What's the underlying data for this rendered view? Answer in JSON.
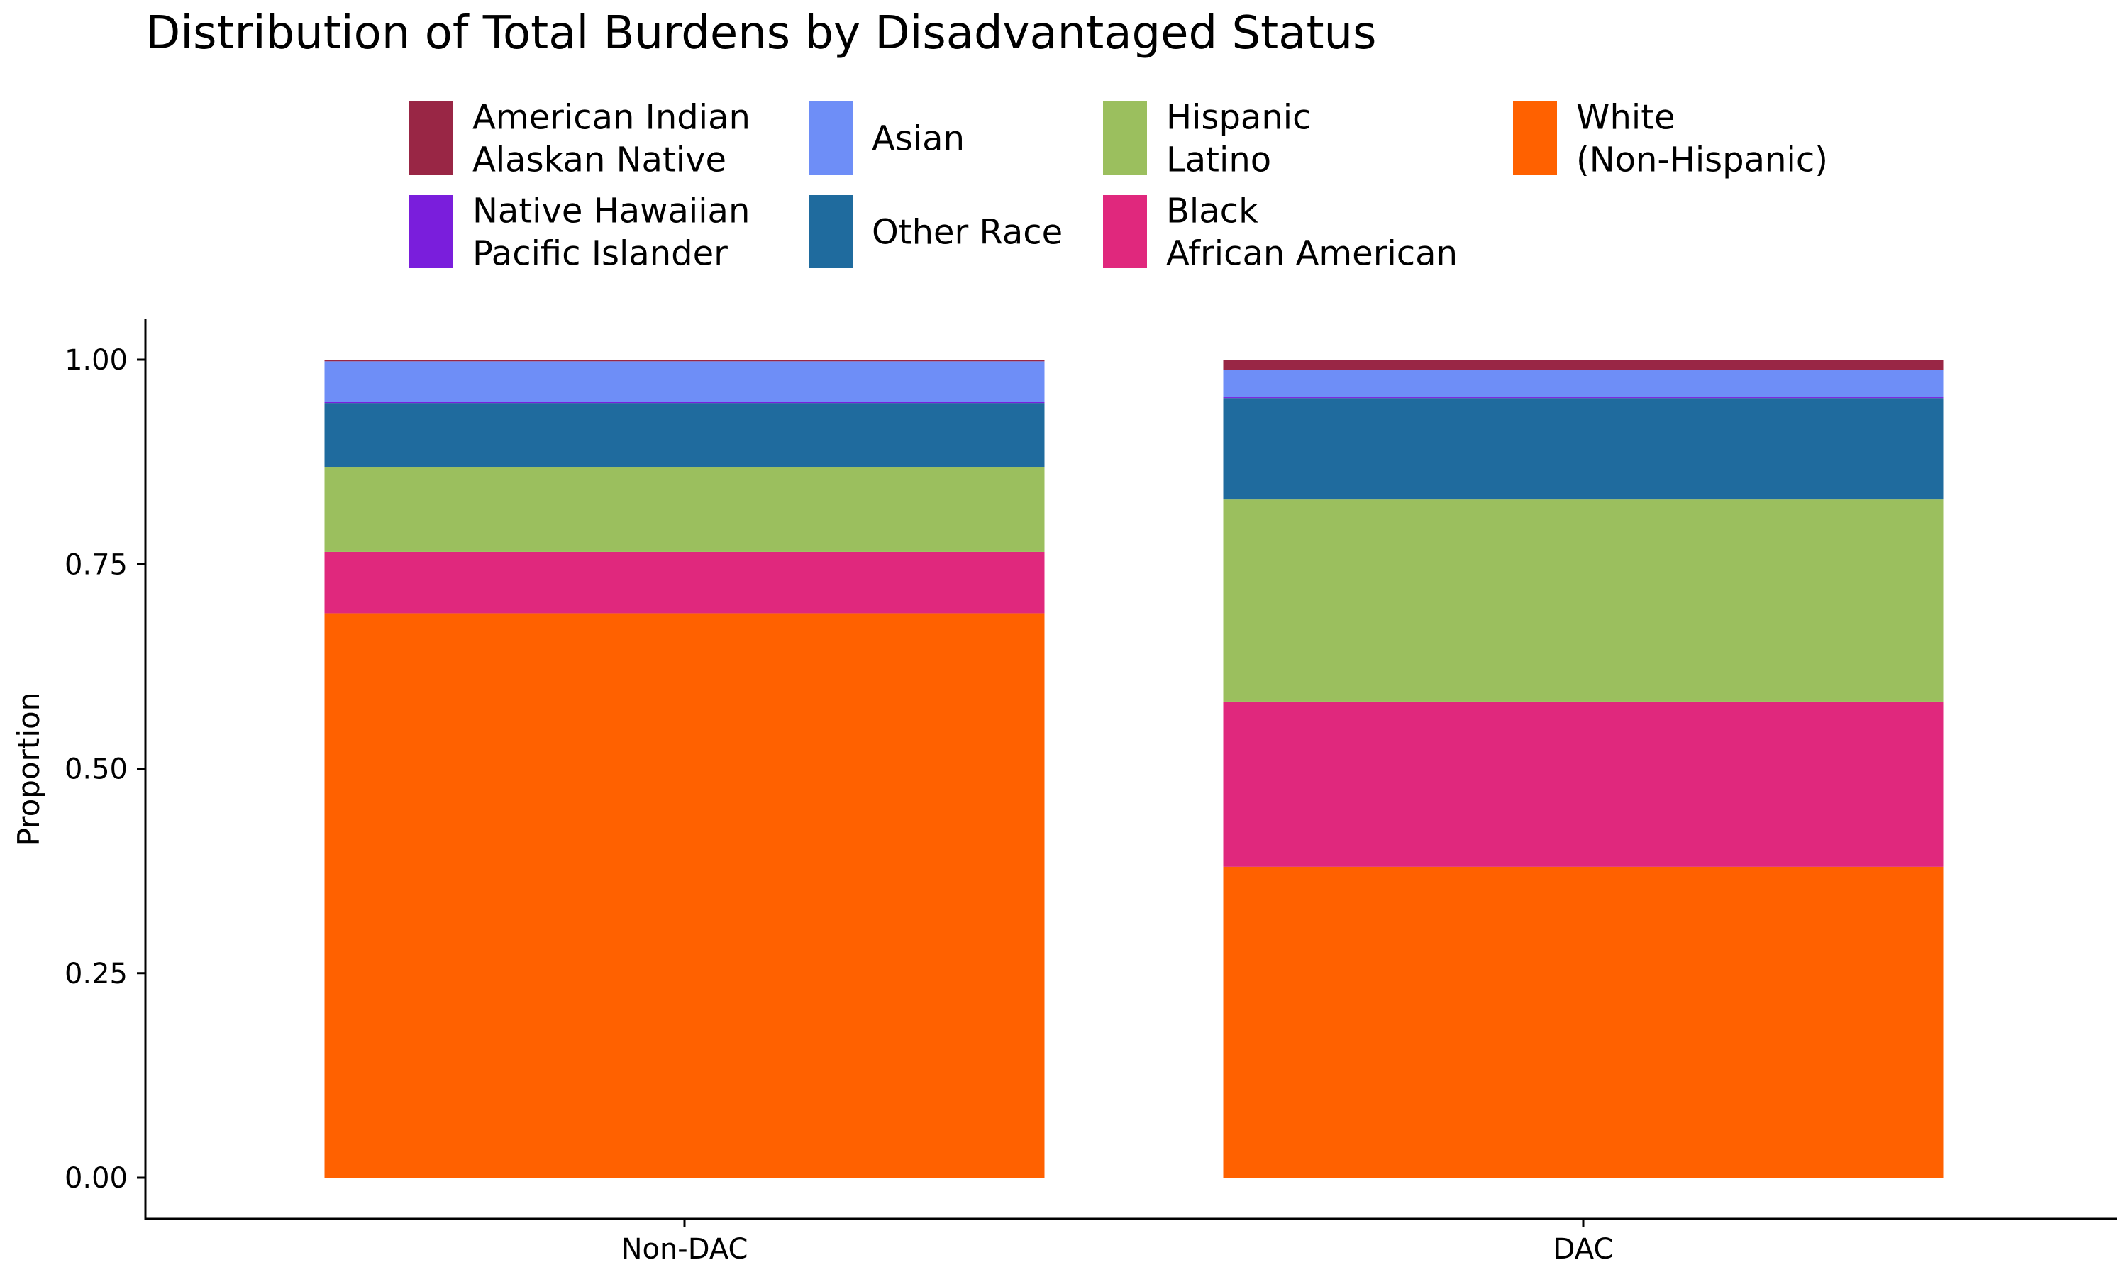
{
  "chart_data": {
    "type": "bar",
    "stacked": true,
    "title": "Distribution of Total Burdens by Disadvantaged Status",
    "xlabel": "",
    "ylabel": "Proportion",
    "ylim": [
      0,
      1
    ],
    "y_ticks": [
      "0.00",
      "0.25",
      "0.50",
      "0.75",
      "1.00"
    ],
    "categories": [
      "Non-DAC",
      "DAC"
    ],
    "grid": false,
    "legend_position": "top",
    "series": [
      {
        "name": "White (Non-Hispanic)",
        "label_lines": [
          "White",
          "(Non-Hispanic)"
        ],
        "color": "#FF6100",
        "values": [
          0.69,
          0.38
        ]
      },
      {
        "name": "Black African American",
        "label_lines": [
          "Black",
          "African American"
        ],
        "color": "#E0287D",
        "values": [
          0.075,
          0.202
        ]
      },
      {
        "name": "Hispanic Latino",
        "label_lines": [
          "Hispanic",
          "Latino"
        ],
        "color": "#9BBF5E",
        "values": [
          0.104,
          0.247
        ]
      },
      {
        "name": "Other Race",
        "label_lines": [
          "Other Race"
        ],
        "color": "#1F6B9E",
        "values": [
          0.078,
          0.124
        ]
      },
      {
        "name": "Native Hawaiian Pacific Islander",
        "label_lines": [
          "Native Hawaiian",
          "Pacific Islander"
        ],
        "color": "#7A1EDC",
        "values": [
          0.001,
          0.001
        ]
      },
      {
        "name": "Asian",
        "label_lines": [
          "Asian"
        ],
        "color": "#6E8EF7",
        "values": [
          0.05,
          0.033
        ]
      },
      {
        "name": "American Indian Alaskan Native",
        "label_lines": [
          "American Indian",
          "Alaskan Native"
        ],
        "color": "#992645",
        "values": [
          0.002,
          0.013
        ]
      }
    ],
    "legend_order": [
      "American Indian Alaskan Native",
      "Asian",
      "Hispanic Latino",
      "White (Non-Hispanic)",
      "Native Hawaiian Pacific Islander",
      "Other Race",
      "Black African American"
    ]
  }
}
